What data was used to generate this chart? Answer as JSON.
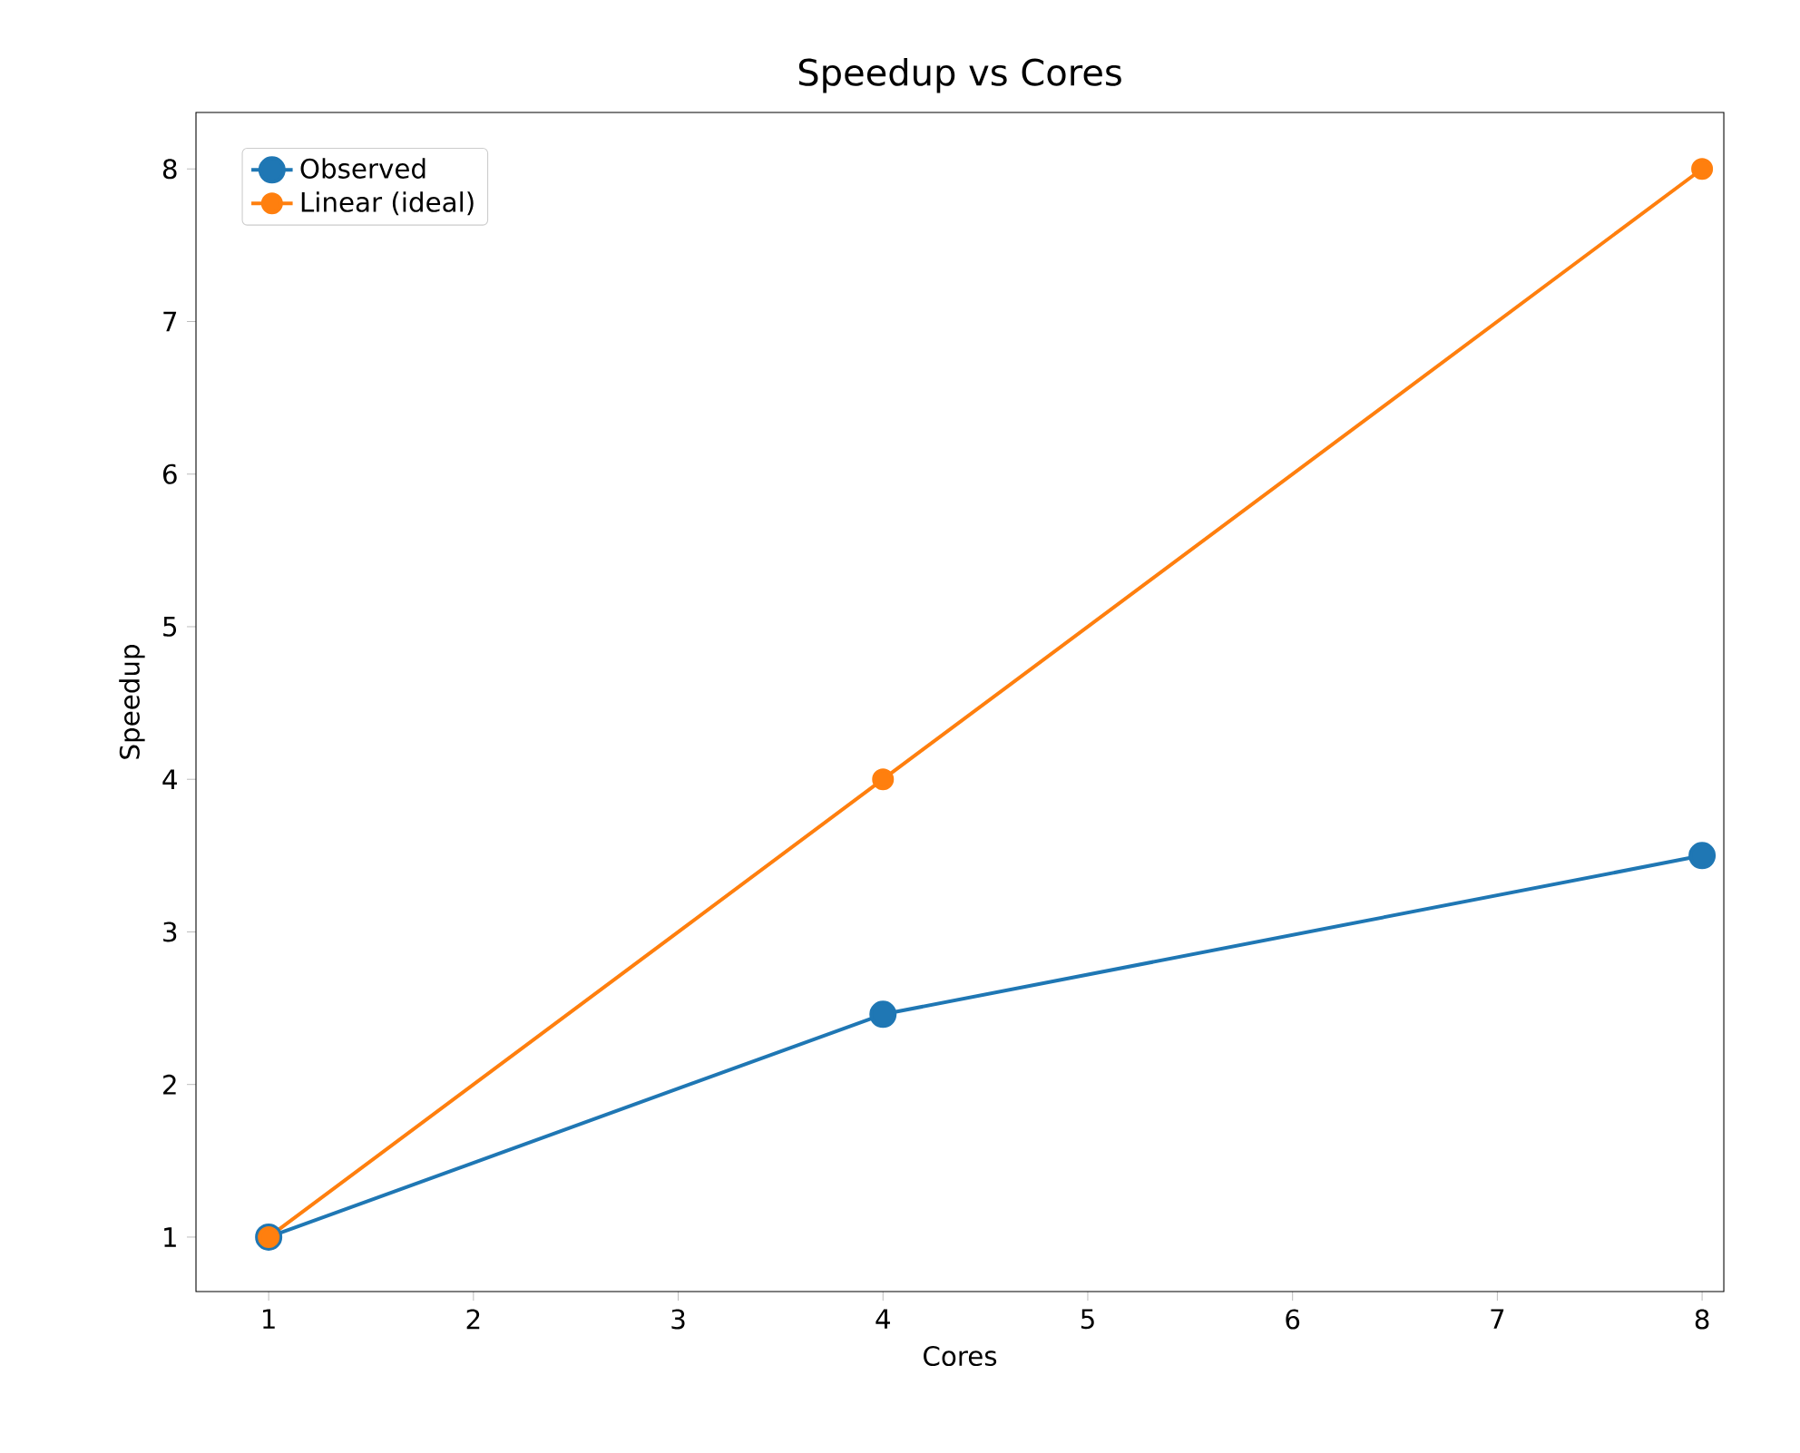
{
  "chart_data": {
    "type": "line",
    "title": "Speedup vs Cores",
    "xlabel": "Cores",
    "ylabel": "Speedup",
    "x": [
      1,
      4,
      8
    ],
    "series": [
      {
        "name": "Observed",
        "color": "#1f77b4",
        "values": [
          1,
          2.46,
          3.5
        ]
      },
      {
        "name": "Linear (ideal)",
        "color": "#ff7f0e",
        "values": [
          1,
          4,
          8
        ]
      }
    ],
    "xlim": [
      0.645,
      8.106
    ],
    "ylim": [
      0.643,
      8.37
    ],
    "xticks": [
      1,
      2,
      3,
      4,
      5,
      6,
      7,
      8
    ],
    "yticks": [
      1,
      2,
      3,
      4,
      5,
      6,
      7,
      8
    ],
    "legend": "top left",
    "marker": "circle",
    "line_style": "solid",
    "grid": false
  }
}
